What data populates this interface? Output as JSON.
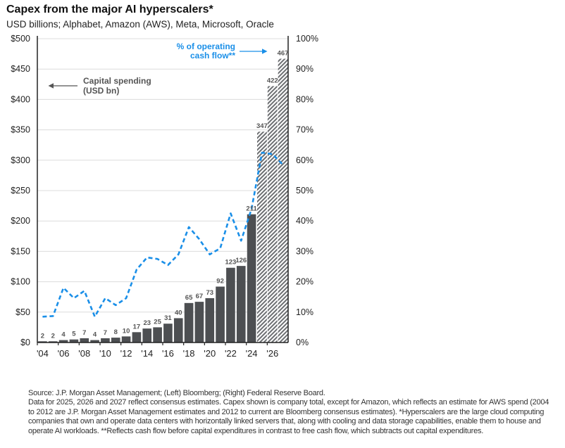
{
  "header": {
    "title": "Capex from the major AI hyperscalers*",
    "subtitle": "USD billions; Alphabet, Amazon (AWS), Meta, Microsoft, Oracle"
  },
  "chart_data": {
    "type": "bar",
    "title": "Capex from the major AI hyperscalers*",
    "subtitle": "USD billions; Alphabet, Amazon (AWS), Meta, Microsoft, Oracle",
    "categories": [
      "2004",
      "2005",
      "2006",
      "2007",
      "2008",
      "2009",
      "2010",
      "2011",
      "2012",
      "2013",
      "2014",
      "2015",
      "2016",
      "2017",
      "2018",
      "2019",
      "2020",
      "2021",
      "2022",
      "2023",
      "2024",
      "2025",
      "2026",
      "2027"
    ],
    "x_tick_labels": [
      "'04",
      "'06",
      "'08",
      "'10",
      "'12",
      "'14",
      "'16",
      "'18",
      "'20",
      "'22",
      "'24",
      "'26"
    ],
    "series": [
      {
        "name": "Capital spending (USD bn)",
        "type": "bar",
        "axis": "left",
        "color": "#4d4f52",
        "estimate_style": "hatched",
        "estimate_from": "2025",
        "values": [
          2,
          2,
          4,
          5,
          7,
          4,
          7,
          8,
          10,
          17,
          23,
          25,
          31,
          40,
          65,
          67,
          73,
          92,
          123,
          126,
          211,
          347,
          422,
          467
        ],
        "labels": [
          "2",
          "2",
          "4",
          "5",
          "7",
          "4",
          "7",
          "8",
          "10",
          "17",
          "23",
          "25",
          "31",
          "40",
          "65",
          "67",
          "73",
          "92",
          "123",
          "126",
          "211",
          "347",
          "422",
          "467"
        ]
      },
      {
        "name": "% of operating cash flow**",
        "type": "line",
        "style": "dashed",
        "axis": "right",
        "color": "#1a8fe8",
        "values": [
          8.5,
          8.7,
          18,
          14.6,
          17,
          8.5,
          14.6,
          12.3,
          14.6,
          24,
          28,
          27.5,
          25.5,
          29,
          38,
          34,
          29,
          31,
          42.5,
          33.5,
          44,
          62.5,
          62,
          58.5
        ]
      }
    ],
    "left_axis": {
      "ylim": [
        0,
        500
      ],
      "ticks": [
        0,
        50,
        100,
        150,
        200,
        250,
        300,
        350,
        400,
        450,
        500
      ],
      "tick_labels": [
        "$0",
        "$50",
        "$100",
        "$150",
        "$200",
        "$250",
        "$300",
        "$350",
        "$400",
        "$450",
        "$500"
      ]
    },
    "right_axis": {
      "ylim": [
        0,
        100
      ],
      "ticks": [
        0,
        10,
        20,
        30,
        40,
        50,
        60,
        70,
        80,
        90,
        100
      ],
      "tick_labels": [
        "0%",
        "10%",
        "20%",
        "30%",
        "40%",
        "50%",
        "60%",
        "70%",
        "80%",
        "90%",
        "100%"
      ]
    },
    "annotations": {
      "capex_label_line1": "Capital spending",
      "capex_label_line2": "(USD bn)",
      "capex_arrow": "left",
      "ocf_label_line1": "% of operating",
      "ocf_label_line2": "cash flow**",
      "ocf_arrow": "right"
    },
    "grid": true,
    "legend": "annotations inside plot (top-left and top-right)"
  },
  "footnote": {
    "source": "Source: J.P. Morgan Asset Management; (Left) Bloomberg; (Right) Federal Reserve Board.",
    "notes": "Data for 2025, 2026 and 2027 reflect consensus estimates. Capex shown is company total, except for Amazon, which reflects an estimate for AWS spend (2004 to 2012 are J.P. Morgan Asset Management estimates and 2012 to current are Bloomberg consensus estimates). *Hyperscalers are the large cloud computing companies that own and operate data centers with horizontally linked servers that, along with cooling and data storage capabilities, enable them to house and operate AI workloads. **Reflects cash flow before capital expenditures in contrast to free cash flow, which subtracts out capital expenditures."
  }
}
